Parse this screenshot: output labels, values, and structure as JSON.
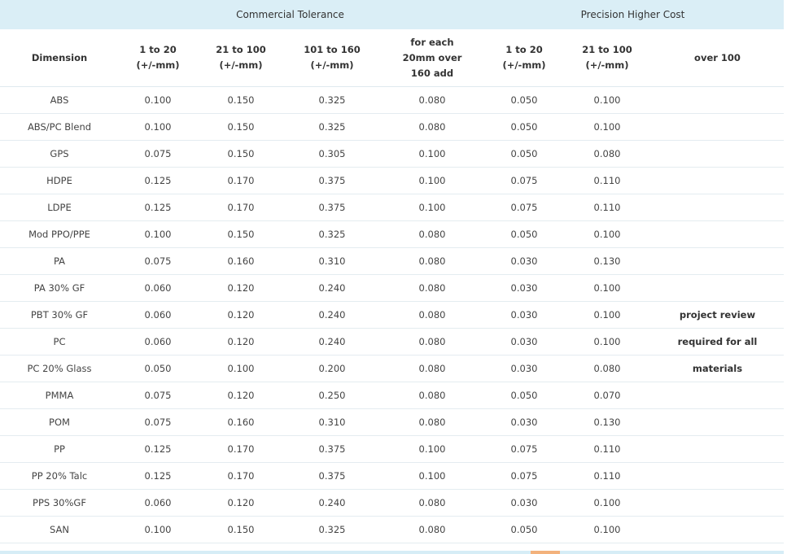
{
  "table": {
    "groups": {
      "commercial": "Commercial Tolerance",
      "precision": "Precision Higher Cost"
    },
    "headers": {
      "dimension": "Dimension",
      "c1": [
        "1 to 20",
        "(+/-mm)"
      ],
      "c2": [
        "21 to 100",
        "(+/-mm)"
      ],
      "c3": [
        "101 to 160",
        "(+/-mm)"
      ],
      "c4": [
        "for each",
        "20mm over",
        "160 add"
      ],
      "c5": [
        "1 to 20",
        "(+/-mm)"
      ],
      "c6": [
        "21 to 100",
        "(+/-mm)"
      ],
      "c7": "over 100"
    },
    "rows": [
      {
        "material": "ABS",
        "v1": "0.100",
        "v2": "0.150",
        "v3": "0.325",
        "v4": "0.080",
        "v5": "0.050",
        "v6": "0.100",
        "note": ""
      },
      {
        "material": "ABS/PC Blend",
        "v1": "0.100",
        "v2": "0.150",
        "v3": "0.325",
        "v4": "0.080",
        "v5": "0.050",
        "v6": "0.100",
        "note": ""
      },
      {
        "material": "GPS",
        "v1": "0.075",
        "v2": "0.150",
        "v3": "0.305",
        "v4": "0.100",
        "v5": "0.050",
        "v6": "0.080",
        "note": ""
      },
      {
        "material": "HDPE",
        "v1": "0.125",
        "v2": "0.170",
        "v3": "0.375",
        "v4": "0.100",
        "v5": "0.075",
        "v6": "0.110",
        "note": ""
      },
      {
        "material": "LDPE",
        "v1": "0.125",
        "v2": "0.170",
        "v3": "0.375",
        "v4": "0.100",
        "v5": "0.075",
        "v6": "0.110",
        "note": ""
      },
      {
        "material": "Mod PPO/PPE",
        "v1": "0.100",
        "v2": "0.150",
        "v3": "0.325",
        "v4": "0.080",
        "v5": "0.050",
        "v6": "0.100",
        "note": ""
      },
      {
        "material": "PA",
        "v1": "0.075",
        "v2": "0.160",
        "v3": "0.310",
        "v4": "0.080",
        "v5": "0.030",
        "v6": "0.130",
        "note": ""
      },
      {
        "material": "PA 30% GF",
        "v1": "0.060",
        "v2": "0.120",
        "v3": "0.240",
        "v4": "0.080",
        "v5": "0.030",
        "v6": "0.100",
        "note": ""
      },
      {
        "material": "PBT 30% GF",
        "v1": "0.060",
        "v2": "0.120",
        "v3": "0.240",
        "v4": "0.080",
        "v5": "0.030",
        "v6": "0.100",
        "note": "project review"
      },
      {
        "material": "PC",
        "v1": "0.060",
        "v2": "0.120",
        "v3": "0.240",
        "v4": "0.080",
        "v5": "0.030",
        "v6": "0.100",
        "note": "required for all"
      },
      {
        "material": "PC 20% Glass",
        "v1": "0.050",
        "v2": "0.100",
        "v3": "0.200",
        "v4": "0.080",
        "v5": "0.030",
        "v6": "0.080",
        "note": "materials"
      },
      {
        "material": "PMMA",
        "v1": "0.075",
        "v2": "0.120",
        "v3": "0.250",
        "v4": "0.080",
        "v5": "0.050",
        "v6": "0.070",
        "note": ""
      },
      {
        "material": "POM",
        "v1": "0.075",
        "v2": "0.160",
        "v3": "0.310",
        "v4": "0.080",
        "v5": "0.030",
        "v6": "0.130",
        "note": ""
      },
      {
        "material": "PP",
        "v1": "0.125",
        "v2": "0.170",
        "v3": "0.375",
        "v4": "0.100",
        "v5": "0.075",
        "v6": "0.110",
        "note": ""
      },
      {
        "material": "PP 20% Talc",
        "v1": "0.125",
        "v2": "0.170",
        "v3": "0.375",
        "v4": "0.100",
        "v5": "0.075",
        "v6": "0.110",
        "note": ""
      },
      {
        "material": "PPS 30%GF",
        "v1": "0.060",
        "v2": "0.120",
        "v3": "0.240",
        "v4": "0.080",
        "v5": "0.030",
        "v6": "0.100",
        "note": ""
      },
      {
        "material": "SAN",
        "v1": "0.100",
        "v2": "0.150",
        "v3": "0.325",
        "v4": "0.080",
        "v5": "0.050",
        "v6": "0.100",
        "note": ""
      }
    ]
  },
  "colors": {
    "header_band": "#daeef6",
    "row_divider": "#e4ecf0",
    "scroll_thumb": "#f3b27c"
  }
}
